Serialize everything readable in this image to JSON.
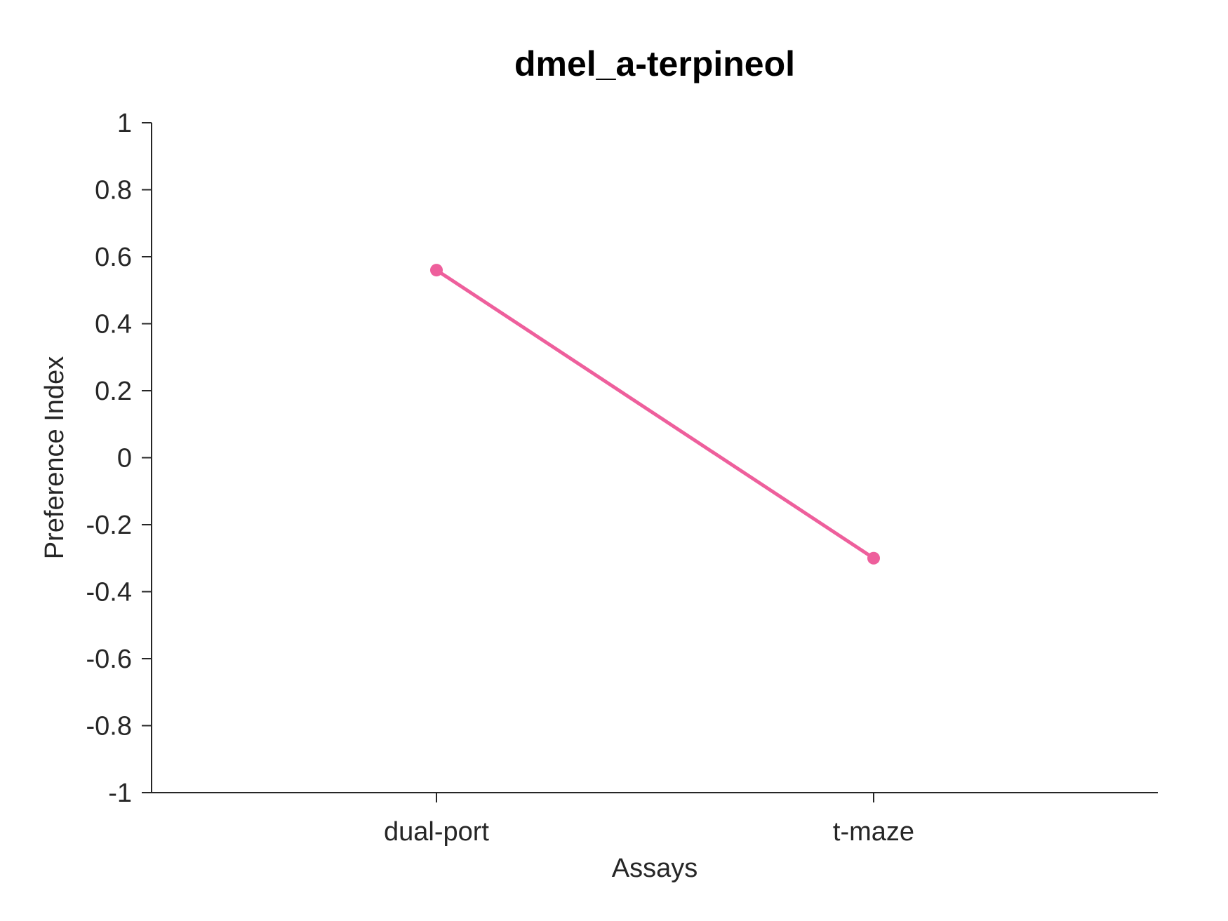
{
  "chart_data": {
    "type": "line",
    "title": "dmel_a-terpineol",
    "xlabel": "Assays",
    "ylabel": "Preference Index",
    "categories": [
      "dual-port",
      "t-maze"
    ],
    "series": [
      {
        "values": [
          0.56,
          -0.3
        ],
        "color": "#ee5f9c"
      }
    ],
    "ylim": [
      -1,
      1
    ],
    "yticks": [
      "1",
      "0.8",
      "0.6",
      "0.4",
      "0.2",
      "0",
      "-0.2",
      "-0.4",
      "-0.6",
      "-0.8",
      "-1"
    ],
    "grid": false,
    "legend": "none"
  }
}
